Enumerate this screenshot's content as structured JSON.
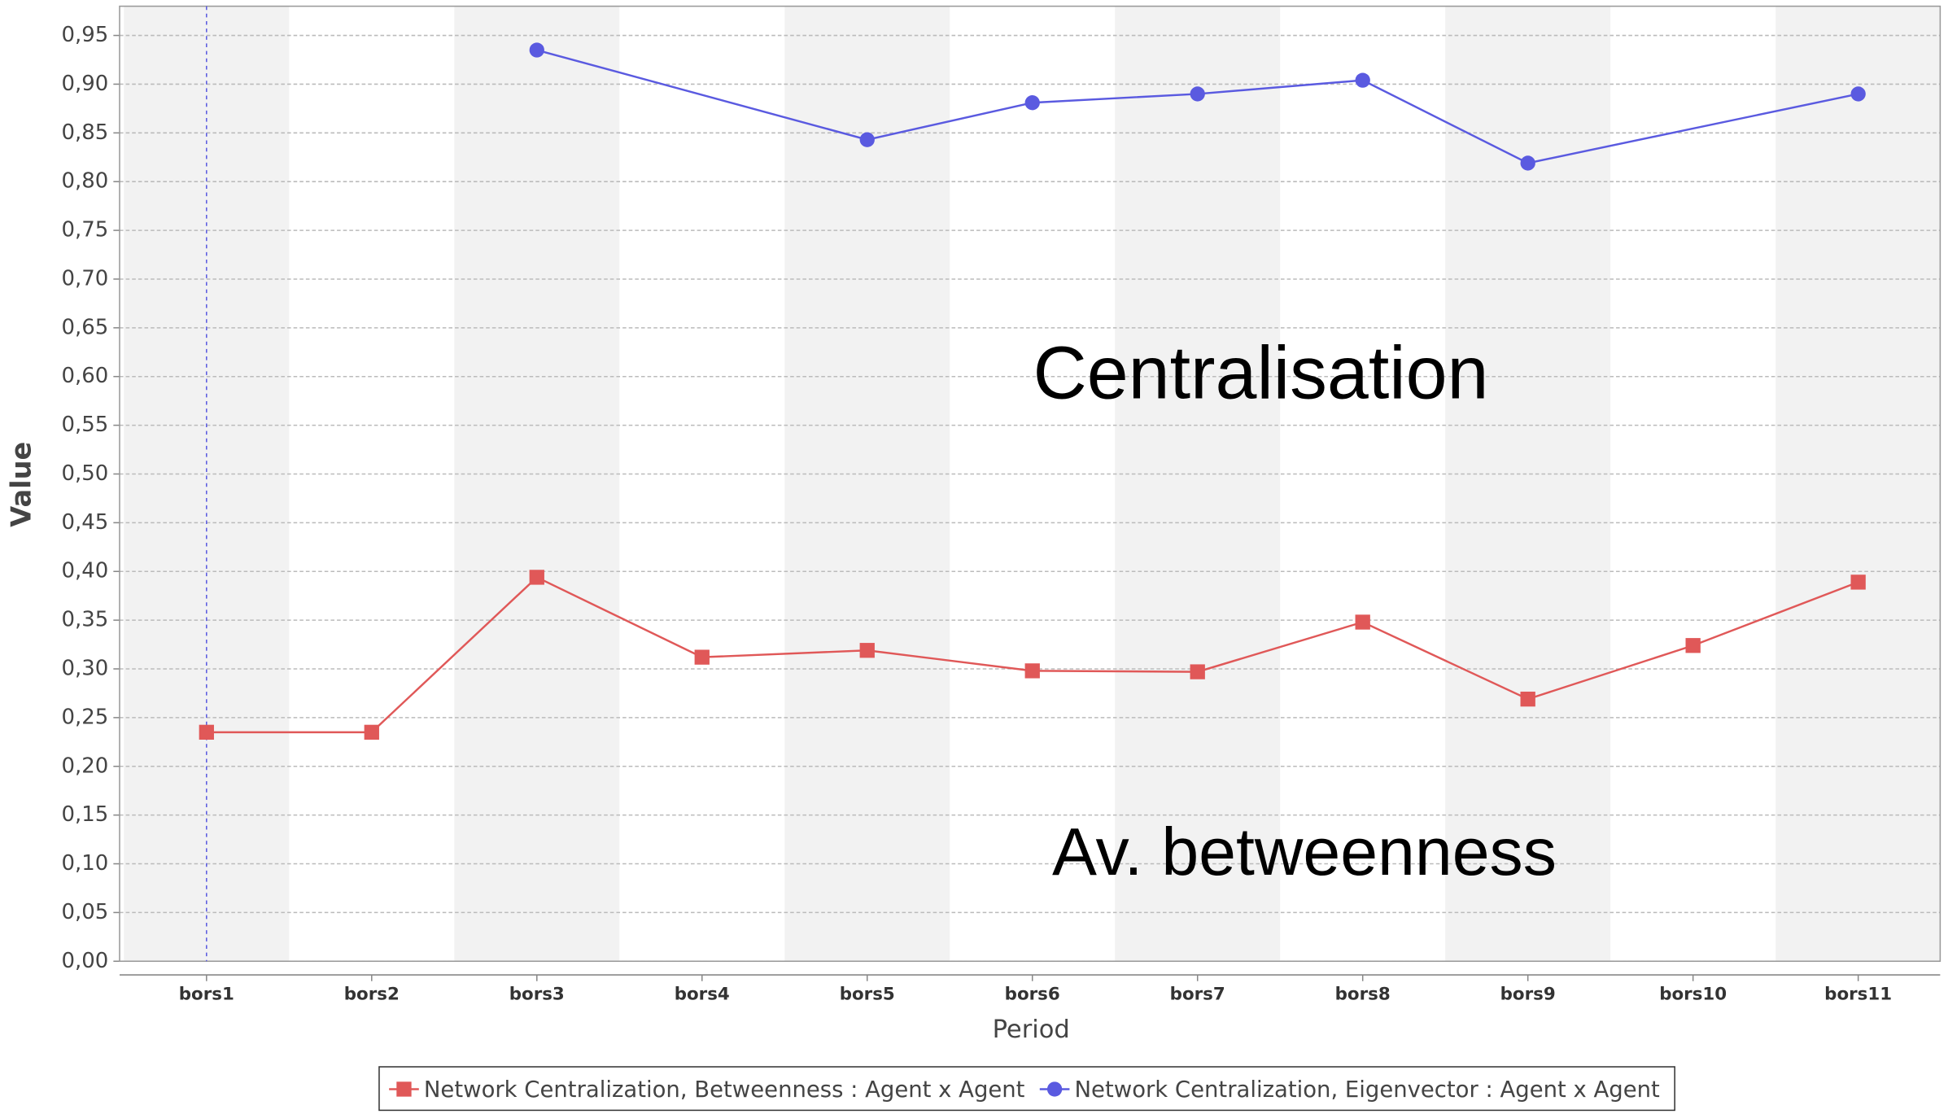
{
  "chart_data": {
    "type": "line",
    "y_label": "Value",
    "x_label": "Period",
    "annotations": [
      "Centralisation",
      "Av. betweenness"
    ],
    "categories": [
      "bors1",
      "bors2",
      "bors3",
      "bors4",
      "bors5",
      "bors6",
      "bors7",
      "bors8",
      "bors9",
      "bors10",
      "bors11"
    ],
    "series": [
      {
        "name": "Network Centralization, Betweenness : Agent x Agent",
        "color": "#e05858",
        "marker": "square",
        "values": [
          0.235,
          0.235,
          0.394,
          0.312,
          0.319,
          0.298,
          0.297,
          0.348,
          0.269,
          0.324,
          0.389
        ]
      },
      {
        "name": "Network Centralization, Eigenvector : Agent x Agent",
        "color": "#5a5ae0",
        "marker": "circle",
        "values": [
          null,
          null,
          0.935,
          null,
          0.843,
          0.881,
          0.89,
          0.904,
          0.819,
          null,
          0.89
        ]
      }
    ],
    "ylim": [
      0,
      0.98
    ],
    "yticks": [
      {
        "value": 0,
        "label": "0,00"
      },
      {
        "value": 0.05,
        "label": "0,05"
      },
      {
        "value": 0.1,
        "label": "0,10"
      },
      {
        "value": 0.15,
        "label": "0,15"
      },
      {
        "value": 0.2,
        "label": "0,20"
      },
      {
        "value": 0.25,
        "label": "0,25"
      },
      {
        "value": 0.3,
        "label": "0,30"
      },
      {
        "value": 0.35,
        "label": "0,35"
      },
      {
        "value": 0.4,
        "label": "0,40"
      },
      {
        "value": 0.45,
        "label": "0,45"
      },
      {
        "value": 0.5,
        "label": "0,50"
      },
      {
        "value": 0.55,
        "label": "0,55"
      },
      {
        "value": 0.6,
        "label": "0,60"
      },
      {
        "value": 0.65,
        "label": "0,65"
      },
      {
        "value": 0.7,
        "label": "0,70"
      },
      {
        "value": 0.75,
        "label": "0,75"
      },
      {
        "value": 0.8,
        "label": "0,80"
      },
      {
        "value": 0.85,
        "label": "0,85"
      },
      {
        "value": 0.9,
        "label": "0,90"
      },
      {
        "value": 0.95,
        "label": "0,95"
      }
    ],
    "grid": true
  }
}
